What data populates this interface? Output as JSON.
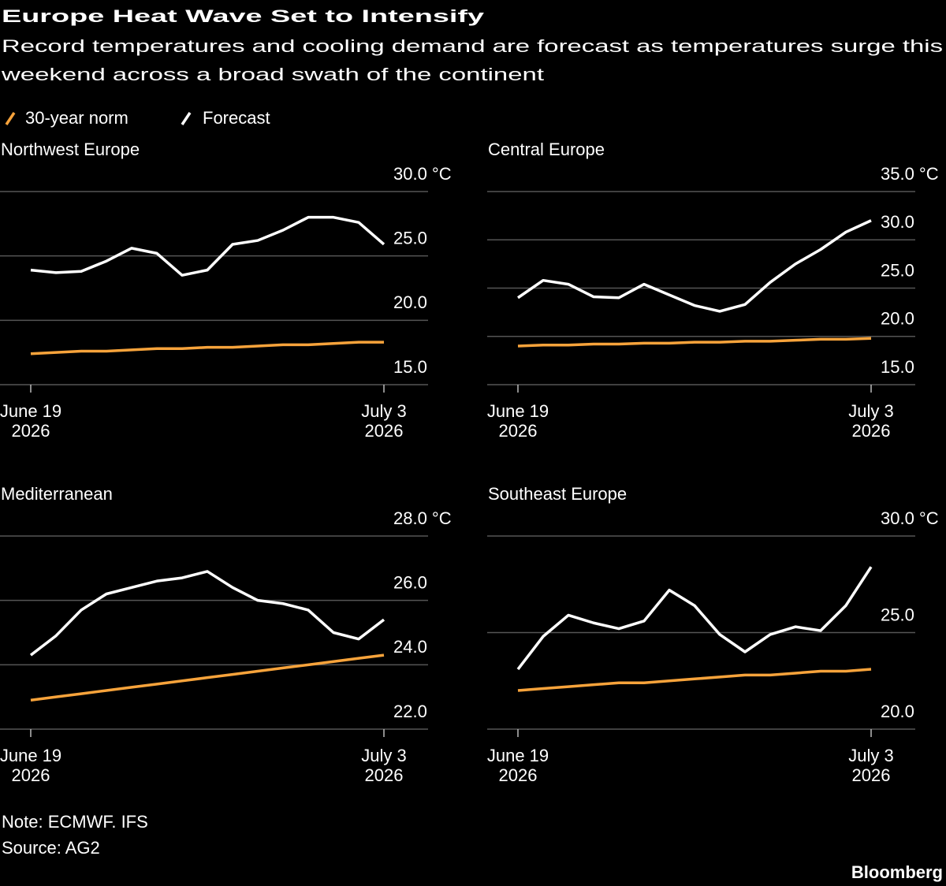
{
  "title": "Europe Heat Wave Set to Intensify",
  "subtitle": [
    "Record temperatures and cooling demand are forecast as temperatures surge this",
    "weekend across a broad swath of the continent"
  ],
  "note": "Note: ECMWF. IFS",
  "source": "Source: AG2",
  "brand": "Bloomberg",
  "chart_data": [
    {
      "type": "line",
      "title": "Northwest Europe",
      "x": [
        "2026-06-19",
        "2026-06-20",
        "2026-06-21",
        "2026-06-22",
        "2026-06-23",
        "2026-06-24",
        "2026-06-25",
        "2026-06-26",
        "2026-06-27",
        "2026-06-28",
        "2026-06-29",
        "2026-06-30",
        "2026-07-01",
        "2026-07-02",
        "2026-07-03"
      ],
      "xlim": [
        "2026-06-19",
        "2026-07-03"
      ],
      "xticks": [
        {
          "value": "2026-06-19",
          "label": [
            "June 19",
            "2026"
          ]
        },
        {
          "value": "2026-07-03",
          "label": [
            "July 3",
            "2026"
          ]
        }
      ],
      "ylim": [
        15,
        30
      ],
      "yticks": [
        {
          "value": 15,
          "label": "15.0"
        },
        {
          "value": 20,
          "label": "20.0"
        },
        {
          "value": 25,
          "label": "25.0"
        },
        {
          "value": 30,
          "label": "30.0 °C"
        }
      ],
      "grid": true,
      "series": [
        {
          "name": "30-year norm",
          "color": "#f7a33b",
          "values": [
            17.4,
            17.5,
            17.6,
            17.6,
            17.7,
            17.8,
            17.8,
            17.9,
            17.9,
            18.0,
            18.1,
            18.1,
            18.2,
            18.3,
            18.3
          ]
        },
        {
          "name": "Forecast",
          "color": "#ffffff",
          "values": [
            23.9,
            23.7,
            23.8,
            24.6,
            25.6,
            25.2,
            23.5,
            23.9,
            25.9,
            26.2,
            27.0,
            28.0,
            28.0,
            27.6,
            25.9
          ]
        }
      ]
    },
    {
      "type": "line",
      "title": "Central Europe",
      "x": [
        "2026-06-19",
        "2026-06-20",
        "2026-06-21",
        "2026-06-22",
        "2026-06-23",
        "2026-06-24",
        "2026-06-25",
        "2026-06-26",
        "2026-06-27",
        "2026-06-28",
        "2026-06-29",
        "2026-06-30",
        "2026-07-01",
        "2026-07-02",
        "2026-07-03"
      ],
      "xlim": [
        "2026-06-19",
        "2026-07-03"
      ],
      "xticks": [
        {
          "value": "2026-06-19",
          "label": [
            "June 19",
            "2026"
          ]
        },
        {
          "value": "2026-07-03",
          "label": [
            "July 3",
            "2026"
          ]
        }
      ],
      "ylim": [
        15,
        35
      ],
      "yticks": [
        {
          "value": 15,
          "label": "15.0"
        },
        {
          "value": 20,
          "label": "20.0"
        },
        {
          "value": 25,
          "label": "25.0"
        },
        {
          "value": 30,
          "label": "30.0"
        },
        {
          "value": 35,
          "label": "35.0 °C"
        }
      ],
      "grid": true,
      "series": [
        {
          "name": "30-year norm",
          "color": "#f7a33b",
          "values": [
            19.0,
            19.1,
            19.1,
            19.2,
            19.2,
            19.3,
            19.3,
            19.4,
            19.4,
            19.5,
            19.5,
            19.6,
            19.7,
            19.7,
            19.8
          ]
        },
        {
          "name": "Forecast",
          "color": "#ffffff",
          "values": [
            24.0,
            25.8,
            25.4,
            24.1,
            24.0,
            25.4,
            24.3,
            23.2,
            22.6,
            23.3,
            25.6,
            27.5,
            29.0,
            30.8,
            32.0
          ]
        }
      ]
    },
    {
      "type": "line",
      "title": "Mediterranean",
      "x": [
        "2026-06-19",
        "2026-06-20",
        "2026-06-21",
        "2026-06-22",
        "2026-06-23",
        "2026-06-24",
        "2026-06-25",
        "2026-06-26",
        "2026-06-27",
        "2026-06-28",
        "2026-06-29",
        "2026-06-30",
        "2026-07-01",
        "2026-07-02",
        "2026-07-03"
      ],
      "xlim": [
        "2026-06-19",
        "2026-07-03"
      ],
      "xticks": [
        {
          "value": "2026-06-19",
          "label": [
            "June 19",
            "2026"
          ]
        },
        {
          "value": "2026-07-03",
          "label": [
            "July 3",
            "2026"
          ]
        }
      ],
      "ylim": [
        22,
        28
      ],
      "yticks": [
        {
          "value": 22,
          "label": "22.0"
        },
        {
          "value": 24,
          "label": "24.0"
        },
        {
          "value": 26,
          "label": "26.0"
        },
        {
          "value": 28,
          "label": "28.0 °C"
        }
      ],
      "grid": true,
      "series": [
        {
          "name": "30-year norm",
          "color": "#f7a33b",
          "values": [
            22.9,
            23.0,
            23.1,
            23.2,
            23.3,
            23.4,
            23.5,
            23.6,
            23.7,
            23.8,
            23.9,
            24.0,
            24.1,
            24.2,
            24.3
          ]
        },
        {
          "name": "Forecast",
          "color": "#ffffff",
          "values": [
            24.3,
            24.9,
            25.7,
            26.2,
            26.4,
            26.6,
            26.7,
            26.9,
            26.4,
            26.0,
            25.9,
            25.7,
            25.0,
            24.8,
            25.4
          ]
        }
      ]
    },
    {
      "type": "line",
      "title": "Southeast Europe",
      "x": [
        "2026-06-19",
        "2026-06-20",
        "2026-06-21",
        "2026-06-22",
        "2026-06-23",
        "2026-06-24",
        "2026-06-25",
        "2026-06-26",
        "2026-06-27",
        "2026-06-28",
        "2026-06-29",
        "2026-06-30",
        "2026-07-01",
        "2026-07-02",
        "2026-07-03"
      ],
      "xlim": [
        "2026-06-19",
        "2026-07-03"
      ],
      "xticks": [
        {
          "value": "2026-06-19",
          "label": [
            "June 19",
            "2026"
          ]
        },
        {
          "value": "2026-07-03",
          "label": [
            "July 3",
            "2026"
          ]
        }
      ],
      "ylim": [
        20,
        30
      ],
      "yticks": [
        {
          "value": 20,
          "label": "20.0"
        },
        {
          "value": 25,
          "label": "25.0"
        },
        {
          "value": 30,
          "label": "30.0 °C"
        }
      ],
      "grid": true,
      "series": [
        {
          "name": "30-year norm",
          "color": "#f7a33b",
          "values": [
            22.0,
            22.1,
            22.2,
            22.3,
            22.4,
            22.4,
            22.5,
            22.6,
            22.7,
            22.8,
            22.8,
            22.9,
            23.0,
            23.0,
            23.1
          ]
        },
        {
          "name": "Forecast",
          "color": "#ffffff",
          "values": [
            23.1,
            24.8,
            25.9,
            25.5,
            25.2,
            25.6,
            27.2,
            26.4,
            24.9,
            24.0,
            24.9,
            25.3,
            25.1,
            26.4,
            28.4
          ]
        }
      ]
    }
  ]
}
